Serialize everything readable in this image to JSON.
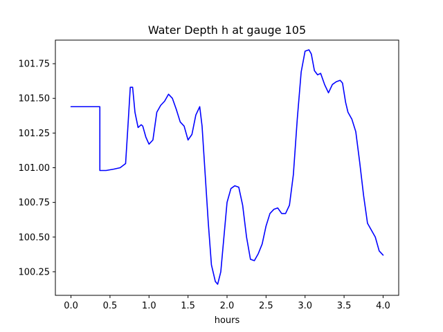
{
  "chart_data": {
    "type": "line",
    "title": "Water Depth h at gauge 105",
    "xlabel": "hours",
    "ylabel": "",
    "xlim": [
      -0.2,
      4.2
    ],
    "ylim": [
      100.08,
      101.92
    ],
    "x_ticks": [
      0.0,
      0.5,
      1.0,
      1.5,
      2.0,
      2.5,
      3.0,
      3.5,
      4.0
    ],
    "x_tick_labels": [
      "0.0",
      "0.5",
      "1.0",
      "1.5",
      "2.0",
      "2.5",
      "3.0",
      "3.5",
      "4.0"
    ],
    "y_ticks": [
      100.25,
      100.5,
      100.75,
      101.0,
      101.25,
      101.5,
      101.75
    ],
    "y_tick_labels": [
      "100.25",
      "100.50",
      "100.75",
      "101.00",
      "101.25",
      "101.50",
      "101.75"
    ],
    "grid": false,
    "series": [
      {
        "color": "#0000ff",
        "x": [
          0.0,
          0.1,
          0.2,
          0.3,
          0.37,
          0.37,
          0.45,
          0.55,
          0.63,
          0.7,
          0.73,
          0.76,
          0.79,
          0.82,
          0.86,
          0.9,
          0.92,
          0.96,
          1.0,
          1.05,
          1.1,
          1.15,
          1.2,
          1.25,
          1.3,
          1.35,
          1.4,
          1.45,
          1.5,
          1.55,
          1.6,
          1.65,
          1.68,
          1.72,
          1.76,
          1.8,
          1.85,
          1.88,
          1.92,
          1.96,
          2.0,
          2.05,
          2.1,
          2.15,
          2.2,
          2.25,
          2.3,
          2.35,
          2.4,
          2.45,
          2.5,
          2.55,
          2.6,
          2.65,
          2.7,
          2.75,
          2.8,
          2.85,
          2.9,
          2.95,
          3.0,
          3.05,
          3.08,
          3.12,
          3.16,
          3.2,
          3.25,
          3.3,
          3.35,
          3.4,
          3.45,
          3.48,
          3.52,
          3.55,
          3.6,
          3.65,
          3.7,
          3.75,
          3.8,
          3.85,
          3.9,
          3.95,
          4.0
        ],
        "y": [
          101.44,
          101.44,
          101.44,
          101.44,
          101.44,
          100.98,
          100.98,
          100.99,
          101.0,
          101.03,
          101.3,
          101.58,
          101.58,
          101.4,
          101.29,
          101.31,
          101.3,
          101.22,
          101.17,
          101.2,
          101.4,
          101.45,
          101.48,
          101.53,
          101.5,
          101.42,
          101.33,
          101.3,
          101.2,
          101.24,
          101.38,
          101.44,
          101.3,
          100.95,
          100.6,
          100.3,
          100.18,
          100.16,
          100.25,
          100.5,
          100.75,
          100.85,
          100.87,
          100.86,
          100.73,
          100.5,
          100.34,
          100.33,
          100.38,
          100.45,
          100.58,
          100.67,
          100.7,
          100.71,
          100.67,
          100.67,
          100.73,
          100.95,
          101.35,
          101.69,
          101.84,
          101.85,
          101.82,
          101.7,
          101.67,
          101.68,
          101.6,
          101.54,
          101.6,
          101.62,
          101.63,
          101.61,
          101.47,
          101.4,
          101.35,
          101.26,
          101.04,
          100.8,
          100.6,
          100.55,
          100.5,
          100.4,
          100.37
        ]
      }
    ]
  }
}
